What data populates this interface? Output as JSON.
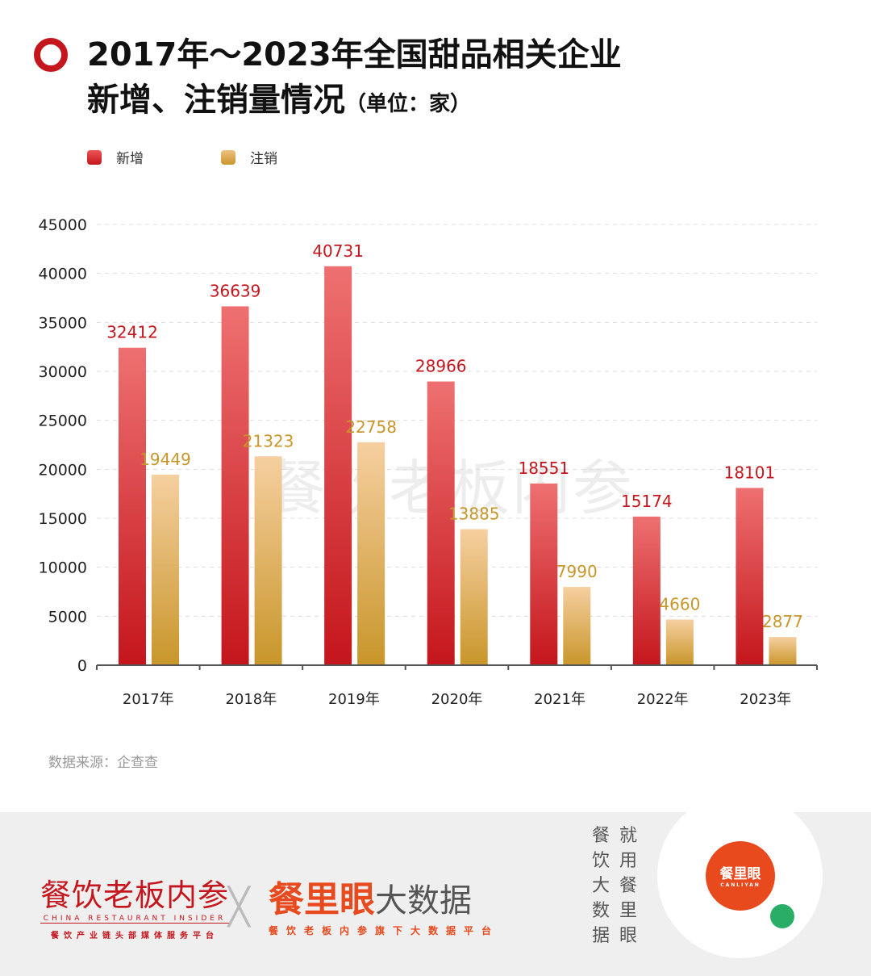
{
  "title": {
    "line1": "2017年～2023年全国甜品相关企业",
    "line2": "新增、注销量情况",
    "unit": "（单位：家）"
  },
  "colors": {
    "accent": "#c4161c",
    "new": "#d9313a",
    "cancel": "#e0b060"
  },
  "watermark": "餐饮老板内参",
  "source": "数据来源：企查查",
  "chart_data": {
    "type": "bar",
    "categories": [
      "2017年",
      "2018年",
      "2019年",
      "2020年",
      "2021年",
      "2022年",
      "2023年"
    ],
    "series": [
      {
        "name": "新增",
        "values": [
          32412,
          36639,
          40731,
          28966,
          18551,
          15174,
          18101
        ]
      },
      {
        "name": "注销",
        "values": [
          19449,
          21323,
          22758,
          13885,
          7990,
          4660,
          2877
        ]
      }
    ],
    "ylim": [
      0,
      45000
    ],
    "yticks": [
      0,
      5000,
      10000,
      15000,
      20000,
      25000,
      30000,
      35000,
      40000,
      45000
    ],
    "grid": true,
    "legend": "top-left"
  },
  "footer": {
    "logo1": {
      "name": "餐饮老板内参",
      "en": "CHINA RESTAURANT INSIDER",
      "sub": "餐饮产业链头部媒体服务平台"
    },
    "logo2": {
      "a": "餐里眼",
      "b": "大数据",
      "sub": "餐饮老板内参旗下大数据平台"
    },
    "slogan_col1": "就用餐里眼",
    "slogan_col2": "餐饮大数据",
    "qr": {
      "name": "餐里眼",
      "en": "CANLIYAN"
    }
  }
}
